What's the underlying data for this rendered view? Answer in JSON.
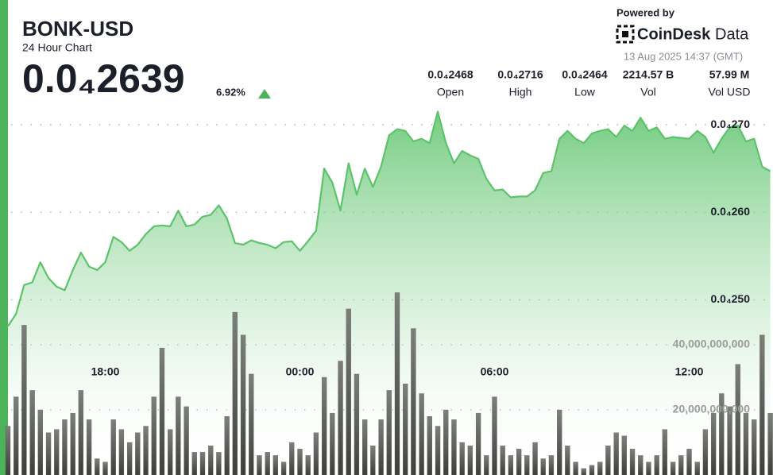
{
  "header": {
    "title": "BONK-USD",
    "subtitle": "24 Hour Chart",
    "price": "0.0₄2639",
    "change": "6.92%",
    "powered_by": "Powered by",
    "brand": "CoinDesk",
    "brand_suffix": "Data",
    "timestamp": "13 Aug 2025 14:37 (GMT)",
    "stats": [
      {
        "value": "0.0₄2468",
        "label": "Open"
      },
      {
        "value": "0.0₄2716",
        "label": "High"
      },
      {
        "value": "0.0₄2464",
        "label": "Low"
      },
      {
        "value": "2214.57 B",
        "label": "Vol"
      },
      {
        "value": "57.99 M",
        "label": "Vol USD"
      }
    ]
  },
  "chart_data": {
    "type": "line",
    "grid": true,
    "x": [
      "15:00",
      "15:15",
      "15:30",
      "15:45",
      "16:00",
      "16:15",
      "16:30",
      "16:45",
      "17:00",
      "17:15",
      "17:30",
      "17:45",
      "18:00",
      "18:15",
      "18:30",
      "18:45",
      "19:00",
      "19:15",
      "19:30",
      "19:45",
      "20:00",
      "20:15",
      "20:30",
      "20:45",
      "21:00",
      "21:15",
      "21:30",
      "21:45",
      "22:00",
      "22:15",
      "22:30",
      "22:45",
      "23:00",
      "23:15",
      "23:30",
      "23:45",
      "00:00",
      "00:15",
      "00:30",
      "00:45",
      "01:00",
      "01:15",
      "01:30",
      "01:45",
      "02:00",
      "02:15",
      "02:30",
      "02:45",
      "03:00",
      "03:15",
      "03:30",
      "03:45",
      "04:00",
      "04:15",
      "04:30",
      "04:45",
      "05:00",
      "05:15",
      "05:30",
      "05:45",
      "06:00",
      "06:15",
      "06:30",
      "06:45",
      "07:00",
      "07:15",
      "07:30",
      "07:45",
      "08:00",
      "08:15",
      "08:30",
      "08:45",
      "09:00",
      "09:15",
      "09:30",
      "09:45",
      "10:00",
      "10:15",
      "10:30",
      "10:45",
      "11:00",
      "11:15",
      "11:30",
      "11:45",
      "12:00",
      "12:15",
      "12:30",
      "12:45",
      "13:00",
      "13:15",
      "13:30",
      "13:45",
      "14:00",
      "14:15",
      "14:30"
    ],
    "xticks": [
      "18:00",
      "00:00",
      "06:00",
      "12:00"
    ],
    "ylim": [
      2.3e-05,
      2.72e-05
    ],
    "yticks": [
      {
        "value": 2.5e-05,
        "label": "0.0₄250"
      },
      {
        "value": 2.6e-05,
        "label": "0.0₄260"
      },
      {
        "value": 2.7e-05,
        "label": "0.0₄270"
      }
    ],
    "y2lim": [
      0,
      100000000000
    ],
    "y2ticks": [
      {
        "value": 20000000000,
        "label": "20,000,000,000"
      },
      {
        "value": 40000000000,
        "label": "40,000,000,000"
      }
    ],
    "series": [
      {
        "type": "line",
        "color": "#5cc36b",
        "values": [
          2.47e-05,
          2.484e-05,
          2.517e-05,
          2.52e-05,
          2.543e-05,
          2.525e-05,
          2.515e-05,
          2.511e-05,
          2.534e-05,
          2.554e-05,
          2.538e-05,
          2.534e-05,
          2.543e-05,
          2.572e-05,
          2.566e-05,
          2.556e-05,
          2.563e-05,
          2.575e-05,
          2.584e-05,
          2.585e-05,
          2.584e-05,
          2.602e-05,
          2.584e-05,
          2.586e-05,
          2.595e-05,
          2.597e-05,
          2.608e-05,
          2.593e-05,
          2.565e-05,
          2.563e-05,
          2.568e-05,
          2.565e-05,
          2.563e-05,
          2.559e-05,
          2.566e-05,
          2.567e-05,
          2.556e-05,
          2.567e-05,
          2.579e-05,
          2.65e-05,
          2.634e-05,
          2.602e-05,
          2.656e-05,
          2.62e-05,
          2.65e-05,
          2.629e-05,
          2.652e-05,
          2.688e-05,
          2.695e-05,
          2.693e-05,
          2.681e-05,
          2.684e-05,
          2.679e-05,
          2.715e-05,
          2.679e-05,
          2.656e-05,
          2.67e-05,
          2.665e-05,
          2.661e-05,
          2.638e-05,
          2.625e-05,
          2.626e-05,
          2.617e-05,
          2.618e-05,
          2.618e-05,
          2.625e-05,
          2.645e-05,
          2.647e-05,
          2.684e-05,
          2.693e-05,
          2.684e-05,
          2.679e-05,
          2.69e-05,
          2.693e-05,
          2.695e-05,
          2.686e-05,
          2.699e-05,
          2.693e-05,
          2.708e-05,
          2.693e-05,
          2.697e-05,
          2.684e-05,
          2.686e-05,
          2.685e-05,
          2.684e-05,
          2.693e-05,
          2.686e-05,
          2.668e-05,
          2.684e-05,
          2.697e-05,
          2.699e-05,
          2.681e-05,
          2.684e-05,
          2.652e-05,
          2.647e-05
        ]
      },
      {
        "type": "bar",
        "axis": "y2",
        "color": "#5b5d58",
        "values": [
          15000000000,
          24000000000,
          46000000000,
          26000000000,
          20000000000,
          13000000000,
          14000000000,
          17000000000,
          19000000000,
          26000000000,
          17000000000,
          5000000000,
          4000000000,
          17000000000,
          14000000000,
          10000000000,
          13000000000,
          15000000000,
          24000000000,
          39000000000,
          14000000000,
          24000000000,
          21000000000,
          7000000000,
          7000000000,
          9000000000,
          7000000000,
          18000000000,
          50000000000,
          43000000000,
          31000000000,
          6000000000,
          7000000000,
          6000000000,
          4000000000,
          10000000000,
          8000000000,
          6000000000,
          13000000000,
          30000000000,
          19000000000,
          35000000000,
          51000000000,
          31000000000,
          17000000000,
          9000000000,
          17000000000,
          26000000000,
          56000000000,
          28000000000,
          45000000000,
          25000000000,
          18000000000,
          15000000000,
          20000000000,
          17000000000,
          10000000000,
          9000000000,
          19000000000,
          6000000000,
          24000000000,
          9000000000,
          6000000000,
          8000000000,
          6000000000,
          10000000000,
          5000000000,
          6000000000,
          20000000000,
          9000000000,
          4000000000,
          2000000000,
          3000000000,
          4000000000,
          9000000000,
          13000000000,
          12000000000,
          8000000000,
          6000000000,
          4000000000,
          6000000000,
          14000000000,
          4000000000,
          6000000000,
          8000000000,
          4000000000,
          14000000000,
          19000000000,
          25000000000,
          21000000000,
          34000000000,
          19000000000,
          17000000000,
          43000000000,
          19000000000
        ]
      }
    ]
  }
}
